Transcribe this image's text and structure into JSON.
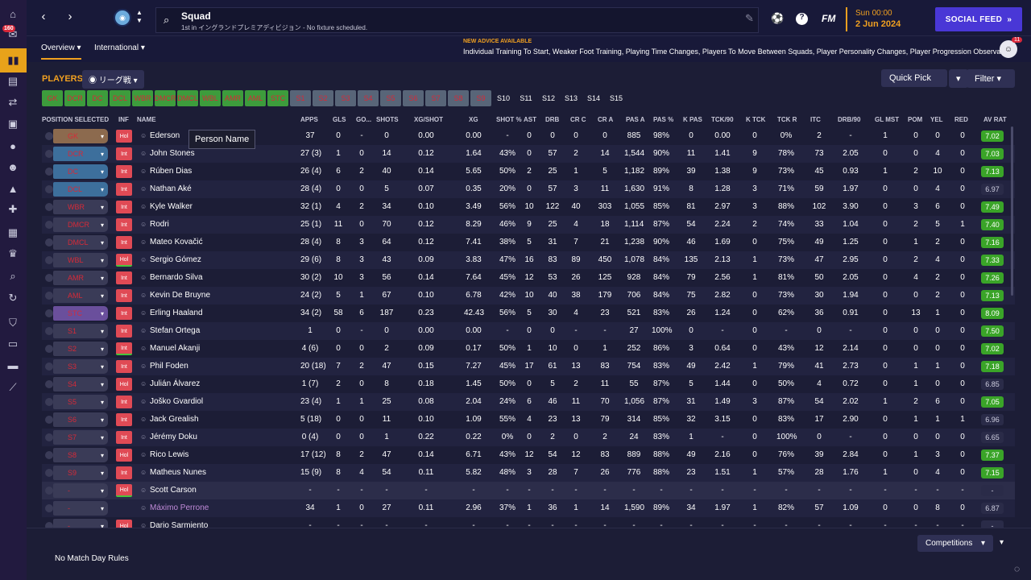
{
  "header": {
    "title": "Squad",
    "subtitle": "1st in イングランドプレミアディビジョン - No fixture scheduled.",
    "fm_logo": "FM",
    "date_time": "Sun 00:00",
    "date": "2 Jun 2024",
    "social_feed_label": "SOCIAL FEED",
    "inbox_badge": "160"
  },
  "tabs": {
    "overview": "Overview",
    "international": "International"
  },
  "advice": {
    "label": "NEW ADVICE AVAILABLE",
    "text": "Individual Training To Start, Weaker Foot Training, Playing Time Changes, Players To Move Between Squads, Player Personality Changes, Player Progression Observations",
    "badge": "11"
  },
  "players_label": "PLAYERS",
  "view_filter": "リーグ戦",
  "quick_pick": "Quick Pick",
  "filter_label": "Filter",
  "position_chips": [
    {
      "label": "GK",
      "state": "g"
    },
    {
      "label": "DCR",
      "state": "g"
    },
    {
      "label": "DC",
      "state": "g"
    },
    {
      "label": "DCL",
      "state": "g"
    },
    {
      "label": "WBR",
      "state": "g"
    },
    {
      "label": "DMCR",
      "state": "g"
    },
    {
      "label": "DMCL",
      "state": "g"
    },
    {
      "label": "WBL",
      "state": "g"
    },
    {
      "label": "AMR",
      "state": "g"
    },
    {
      "label": "AML",
      "state": "g"
    },
    {
      "label": "STC",
      "state": "g"
    },
    {
      "label": "S1",
      "state": "s"
    },
    {
      "label": "S2",
      "state": "s"
    },
    {
      "label": "S3",
      "state": "s"
    },
    {
      "label": "S4",
      "state": "s"
    },
    {
      "label": "S5",
      "state": "s"
    },
    {
      "label": "S6",
      "state": "s"
    },
    {
      "label": "S7",
      "state": "s"
    },
    {
      "label": "S8",
      "state": "s"
    },
    {
      "label": "S9",
      "state": "s"
    },
    {
      "label": "S10",
      "state": "d"
    },
    {
      "label": "S11",
      "state": "d"
    },
    {
      "label": "S12",
      "state": "d"
    },
    {
      "label": "S13",
      "state": "d"
    },
    {
      "label": "S14",
      "state": "d"
    },
    {
      "label": "S15",
      "state": "d"
    }
  ],
  "columns": [
    "POSITION SELECTED",
    "INF",
    "NAME",
    "APPS",
    "GLS",
    "GO...",
    "SHOTS",
    "XG/SHOT",
    "XG",
    "SHOT %",
    "AST",
    "DRB",
    "CR C",
    "CR A",
    "PAS A",
    "PAS %",
    "K PAS",
    "TCK/90",
    "K TCK",
    "TCK R",
    "ITC",
    "DRB/90",
    "GL MST",
    "POM",
    "YEL",
    "RED",
    "AV RAT"
  ],
  "players": [
    {
      "pos": "GK",
      "posColor": "#8c6a4e",
      "inf": "Hol",
      "name": "Ederson",
      "s": [
        "37",
        "0",
        "-",
        "0",
        "0.00",
        "0.00",
        "-",
        "0",
        "0",
        "0",
        "0",
        "885",
        "98%",
        "0",
        "0.00",
        "0",
        "0%",
        "2",
        "-",
        "1",
        "0",
        "0",
        "0"
      ],
      "rat": "7.02",
      "ratType": "gr"
    },
    {
      "pos": "DCR",
      "posColor": "#3d6f9c",
      "inf": "Int",
      "name": "John Stones",
      "s": [
        "27 (3)",
        "1",
        "0",
        "14",
        "0.12",
        "1.64",
        "43%",
        "0",
        "57",
        "2",
        "14",
        "1,544",
        "90%",
        "11",
        "1.41",
        "9",
        "78%",
        "73",
        "2.05",
        "0",
        "0",
        "4",
        "0"
      ],
      "rat": "7.03",
      "ratType": "gr"
    },
    {
      "pos": "DC",
      "posColor": "#3d6f9c",
      "inf": "Int",
      "name": "Rúben Dias",
      "s": [
        "26 (4)",
        "6",
        "2",
        "40",
        "0.14",
        "5.65",
        "50%",
        "2",
        "25",
        "1",
        "5",
        "1,182",
        "89%",
        "39",
        "1.38",
        "9",
        "73%",
        "45",
        "0.93",
        "1",
        "2",
        "10",
        "0"
      ],
      "rat": "7.13",
      "ratType": "gr"
    },
    {
      "pos": "DCL",
      "posColor": "#3d6f9c",
      "inf": "Int",
      "name": "Nathan Aké",
      "s": [
        "28 (4)",
        "0",
        "0",
        "5",
        "0.07",
        "0.35",
        "20%",
        "0",
        "57",
        "3",
        "11",
        "1,630",
        "91%",
        "8",
        "1.28",
        "3",
        "71%",
        "59",
        "1.97",
        "0",
        "0",
        "4",
        "0"
      ],
      "rat": "6.97",
      "ratType": "pl"
    },
    {
      "pos": "WBR",
      "posColor": "#3a3b57",
      "inf": "Int",
      "name": "Kyle Walker",
      "s": [
        "32 (1)",
        "4",
        "2",
        "34",
        "0.10",
        "3.49",
        "56%",
        "10",
        "122",
        "40",
        "303",
        "1,055",
        "85%",
        "81",
        "2.97",
        "3",
        "88%",
        "102",
        "3.90",
        "0",
        "3",
        "6",
        "0"
      ],
      "rat": "7.49",
      "ratType": "gr"
    },
    {
      "pos": "DMCR",
      "posColor": "#3a3b57",
      "inf": "Int",
      "name": "Rodri",
      "s": [
        "25 (1)",
        "11",
        "0",
        "70",
        "0.12",
        "8.29",
        "46%",
        "9",
        "25",
        "4",
        "18",
        "1,114",
        "87%",
        "54",
        "2.24",
        "2",
        "74%",
        "33",
        "1.04",
        "0",
        "2",
        "5",
        "1"
      ],
      "rat": "7.40",
      "ratType": "gr"
    },
    {
      "pos": "DMCL",
      "posColor": "#3a3b57",
      "inf": "Int",
      "name": "Mateo Kovačić",
      "s": [
        "28 (4)",
        "8",
        "3",
        "64",
        "0.12",
        "7.41",
        "38%",
        "5",
        "31",
        "7",
        "21",
        "1,238",
        "90%",
        "46",
        "1.69",
        "0",
        "75%",
        "49",
        "1.25",
        "0",
        "1",
        "2",
        "0"
      ],
      "rat": "7.16",
      "ratType": "gr"
    },
    {
      "pos": "WBL",
      "posColor": "#3a3b57",
      "inf": "Hol",
      "infG": true,
      "name": "Sergio Gómez",
      "s": [
        "29 (6)",
        "8",
        "3",
        "43",
        "0.09",
        "3.83",
        "47%",
        "16",
        "83",
        "89",
        "450",
        "1,078",
        "84%",
        "135",
        "2.13",
        "1",
        "73%",
        "47",
        "2.95",
        "0",
        "2",
        "4",
        "0"
      ],
      "rat": "7.33",
      "ratType": "gr"
    },
    {
      "pos": "AMR",
      "posColor": "#3a3b57",
      "inf": "Int",
      "name": "Bernardo Silva",
      "s": [
        "30 (2)",
        "10",
        "3",
        "56",
        "0.14",
        "7.64",
        "45%",
        "12",
        "53",
        "26",
        "125",
        "928",
        "84%",
        "79",
        "2.56",
        "1",
        "81%",
        "50",
        "2.05",
        "0",
        "4",
        "2",
        "0"
      ],
      "rat": "7.26",
      "ratType": "gr"
    },
    {
      "pos": "AML",
      "posColor": "#3a3b57",
      "inf": "Int",
      "name": "Kevin De Bruyne",
      "s": [
        "24 (2)",
        "5",
        "1",
        "67",
        "0.10",
        "6.78",
        "42%",
        "10",
        "40",
        "38",
        "179",
        "706",
        "84%",
        "75",
        "2.82",
        "0",
        "73%",
        "30",
        "1.94",
        "0",
        "0",
        "2",
        "0"
      ],
      "rat": "7.13",
      "ratType": "gr"
    },
    {
      "pos": "STC",
      "posColor": "#6a4f9c",
      "inf": "Int",
      "name": "Erling Haaland",
      "s": [
        "34 (2)",
        "58",
        "6",
        "187",
        "0.23",
        "42.43",
        "56%",
        "5",
        "30",
        "4",
        "23",
        "521",
        "83%",
        "26",
        "1.24",
        "0",
        "62%",
        "36",
        "0.91",
        "0",
        "13",
        "1",
        "0"
      ],
      "rat": "8.09",
      "ratType": "gr"
    },
    {
      "pos": "S1",
      "posColor": "#3a3b57",
      "inf": "Int",
      "name": "Stefan Ortega",
      "s": [
        "1",
        "0",
        "-",
        "0",
        "0.00",
        "0.00",
        "-",
        "0",
        "0",
        "-",
        "-",
        "27",
        "100%",
        "0",
        "-",
        "0",
        "-",
        "0",
        "-",
        "0",
        "0",
        "0",
        "0"
      ],
      "rat": "7.50",
      "ratType": "gr"
    },
    {
      "pos": "S2",
      "posColor": "#3a3b57",
      "inf": "Int",
      "infG": true,
      "name": "Manuel Akanji",
      "s": [
        "4 (6)",
        "0",
        "0",
        "2",
        "0.09",
        "0.17",
        "50%",
        "1",
        "10",
        "0",
        "1",
        "252",
        "86%",
        "3",
        "0.64",
        "0",
        "43%",
        "12",
        "2.14",
        "0",
        "0",
        "0",
        "0"
      ],
      "rat": "7.02",
      "ratType": "gr"
    },
    {
      "pos": "S3",
      "posColor": "#3a3b57",
      "inf": "Int",
      "name": "Phil Foden",
      "s": [
        "20 (18)",
        "7",
        "2",
        "47",
        "0.15",
        "7.27",
        "45%",
        "17",
        "61",
        "13",
        "83",
        "754",
        "83%",
        "49",
        "2.42",
        "1",
        "79%",
        "41",
        "2.73",
        "0",
        "1",
        "1",
        "0"
      ],
      "rat": "7.18",
      "ratType": "gr"
    },
    {
      "pos": "S4",
      "posColor": "#3a3b57",
      "inf": "Hol",
      "name": "Julián Álvarez",
      "s": [
        "1 (7)",
        "2",
        "0",
        "8",
        "0.18",
        "1.45",
        "50%",
        "0",
        "5",
        "2",
        "11",
        "55",
        "87%",
        "5",
        "1.44",
        "0",
        "50%",
        "4",
        "0.72",
        "0",
        "1",
        "0",
        "0"
      ],
      "rat": "6.85",
      "ratType": "pl"
    },
    {
      "pos": "S5",
      "posColor": "#3a3b57",
      "inf": "Int",
      "name": "Joško Gvardiol",
      "s": [
        "23 (4)",
        "1",
        "1",
        "25",
        "0.08",
        "2.04",
        "24%",
        "6",
        "46",
        "11",
        "70",
        "1,056",
        "87%",
        "31",
        "1.49",
        "3",
        "87%",
        "54",
        "2.02",
        "1",
        "2",
        "6",
        "0"
      ],
      "rat": "7.05",
      "ratType": "gr"
    },
    {
      "pos": "S6",
      "posColor": "#3a3b57",
      "inf": "Int",
      "name": "Jack Grealish",
      "s": [
        "5 (18)",
        "0",
        "0",
        "11",
        "0.10",
        "1.09",
        "55%",
        "4",
        "23",
        "13",
        "79",
        "314",
        "85%",
        "32",
        "3.15",
        "0",
        "83%",
        "17",
        "2.90",
        "0",
        "1",
        "1",
        "1"
      ],
      "rat": "6.96",
      "ratType": "pl"
    },
    {
      "pos": "S7",
      "posColor": "#3a3b57",
      "inf": "Int",
      "name": "Jérémy Doku",
      "s": [
        "0 (4)",
        "0",
        "0",
        "1",
        "0.22",
        "0.22",
        "0%",
        "0",
        "2",
        "0",
        "2",
        "24",
        "83%",
        "1",
        "-",
        "0",
        "100%",
        "0",
        "-",
        "0",
        "0",
        "0",
        "0"
      ],
      "rat": "6.65",
      "ratType": "pl"
    },
    {
      "pos": "S8",
      "posColor": "#3a3b57",
      "inf": "Hol",
      "name": "Rico Lewis",
      "s": [
        "17 (12)",
        "8",
        "2",
        "47",
        "0.14",
        "6.71",
        "43%",
        "12",
        "54",
        "12",
        "83",
        "889",
        "88%",
        "49",
        "2.16",
        "0",
        "76%",
        "39",
        "2.84",
        "0",
        "1",
        "3",
        "0"
      ],
      "rat": "7.37",
      "ratType": "gr"
    },
    {
      "pos": "S9",
      "posColor": "#3a3b57",
      "inf": "Int",
      "name": "Matheus Nunes",
      "s": [
        "15 (9)",
        "8",
        "4",
        "54",
        "0.11",
        "5.82",
        "48%",
        "3",
        "28",
        "7",
        "26",
        "776",
        "88%",
        "23",
        "1.51",
        "1",
        "57%",
        "28",
        "1.76",
        "1",
        "0",
        "4",
        "0"
      ],
      "rat": "7.15",
      "ratType": "gr"
    },
    {
      "pos": "-",
      "posColor": "#3a3b57",
      "inf": "Hol",
      "infG": true,
      "name": "Scott Carson",
      "hl": true,
      "s": [
        "-",
        "-",
        "-",
        "-",
        "-",
        "-",
        "-",
        "-",
        "-",
        "-",
        "-",
        "-",
        "-",
        "-",
        "-",
        "-",
        "-",
        "-",
        "-",
        "-",
        "-",
        "-",
        "-"
      ],
      "rat": "-",
      "ratType": "pl"
    },
    {
      "pos": "-",
      "posColor": "#3a3b57",
      "inf": "",
      "name": "Máximo Perrone",
      "purple": true,
      "s": [
        "34",
        "1",
        "0",
        "27",
        "0.11",
        "2.96",
        "37%",
        "1",
        "36",
        "1",
        "14",
        "1,590",
        "89%",
        "34",
        "1.97",
        "1",
        "82%",
        "57",
        "1.09",
        "0",
        "0",
        "8",
        "0"
      ],
      "rat": "6.87",
      "ratType": "pl"
    },
    {
      "pos": "-",
      "posColor": "#3a3b57",
      "inf": "Hol",
      "name": "Dario Sarmiento",
      "s": [
        "-",
        "-",
        "-",
        "-",
        "-",
        "-",
        "-",
        "-",
        "-",
        "-",
        "-",
        "-",
        "-",
        "-",
        "-",
        "-",
        "-",
        "-",
        "-",
        "-",
        "-",
        "-",
        "-"
      ],
      "rat": "-",
      "ratType": "pl"
    }
  ],
  "tooltip": "Person Name",
  "no_match": "No Match Day Rules",
  "competitions": "Competitions"
}
